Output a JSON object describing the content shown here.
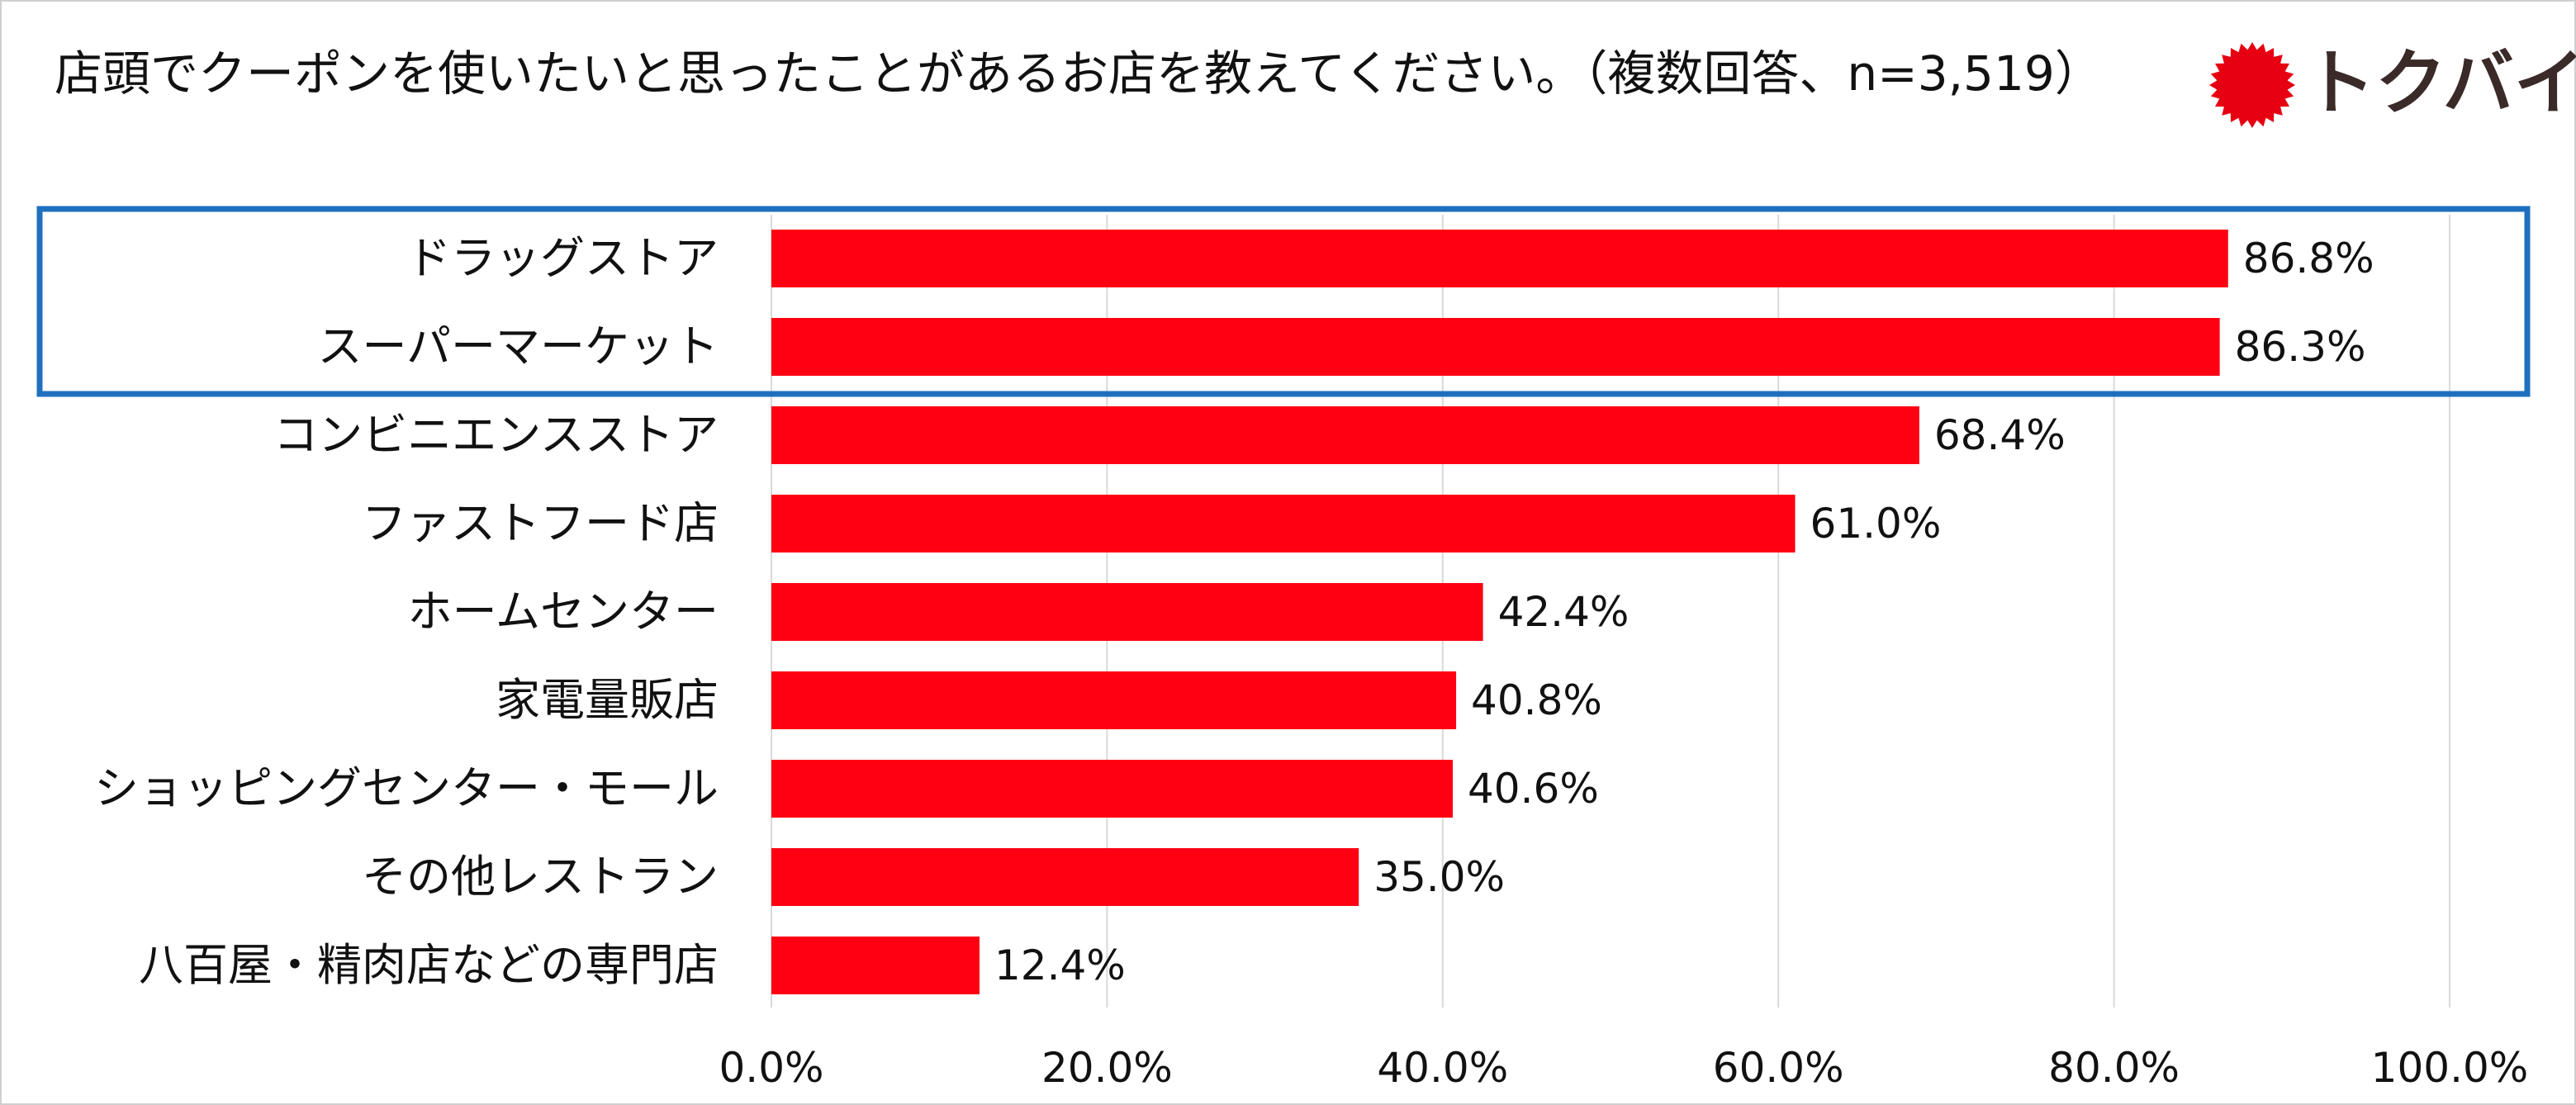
{
  "title": "店頭でクーポンを使いたいと思ったことがあるお店を教えてください。（複数回答、n=3,519）",
  "brand": {
    "wordmark": "トクバイ",
    "icon": "sunburst-badge-icon",
    "color": "#e60012",
    "text_color": "#3a2a28"
  },
  "chart_data": {
    "type": "bar",
    "orientation": "horizontal",
    "categories": [
      "ドラッグストア",
      "スーパーマーケット",
      "コンビニエンスストア",
      "ファストフード店",
      "ホームセンター",
      "家電量販店",
      "ショッピングセンター・モール",
      "その他レストラン",
      "八百屋・精肉店などの専門店"
    ],
    "values": [
      86.8,
      86.3,
      68.4,
      61.0,
      42.4,
      40.8,
      40.6,
      35.0,
      12.4
    ],
    "value_labels": [
      "86.8%",
      "86.3%",
      "68.4%",
      "61.0%",
      "42.4%",
      "40.8%",
      "40.6%",
      "35.0%",
      "12.4%"
    ],
    "xlim": [
      0,
      100
    ],
    "x_ticks": [
      "0.0%",
      "20.0%",
      "40.0%",
      "60.0%",
      "80.0%",
      "100.0%"
    ],
    "grid": true,
    "legend": "none",
    "highlighted_categories": [
      "ドラッグストア",
      "スーパーマーケット"
    ],
    "colors": {
      "bar": "#ff0013",
      "highlight_box": "#1f6fbf",
      "grid": "#d9d9d9"
    }
  }
}
